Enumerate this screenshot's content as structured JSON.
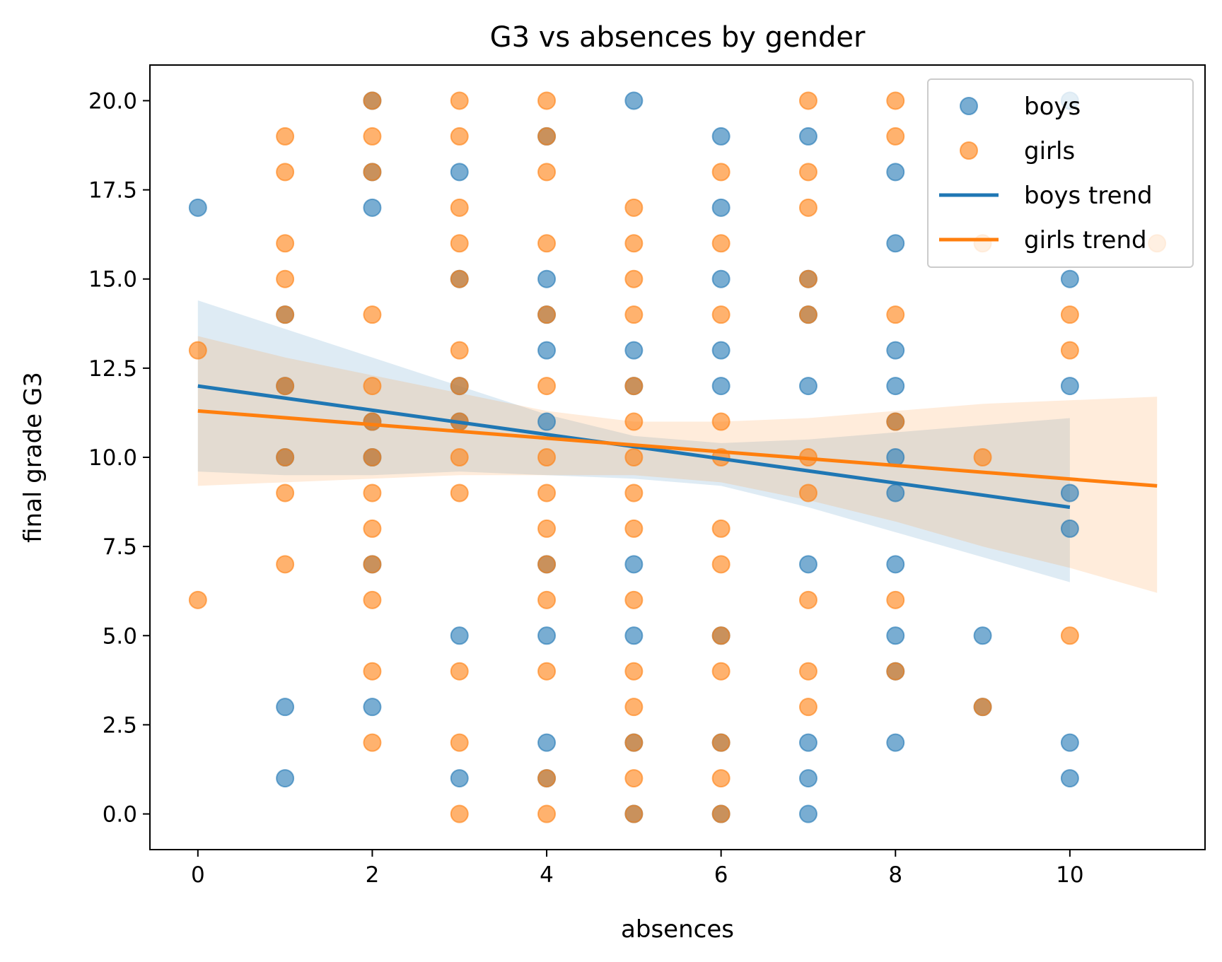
{
  "chart_data": {
    "type": "scatter",
    "title": "G3 vs absences by gender",
    "xlabel": "absences",
    "ylabel": "final grade G3",
    "xlim": [
      -0.55,
      11.55
    ],
    "ylim": [
      -1.0,
      21.0
    ],
    "xticks": [
      {
        "value": 0,
        "label": "0"
      },
      {
        "value": 2,
        "label": "2"
      },
      {
        "value": 4,
        "label": "4"
      },
      {
        "value": 6,
        "label": "6"
      },
      {
        "value": 8,
        "label": "8"
      },
      {
        "value": 10,
        "label": "10"
      }
    ],
    "yticks": [
      {
        "value": 0,
        "label": "0.0"
      },
      {
        "value": 2.5,
        "label": "2.5"
      },
      {
        "value": 5,
        "label": "5.0"
      },
      {
        "value": 7.5,
        "label": "7.5"
      },
      {
        "value": 10,
        "label": "10.0"
      },
      {
        "value": 12.5,
        "label": "12.5"
      },
      {
        "value": 15,
        "label": "15.0"
      },
      {
        "value": 17.5,
        "label": "17.5"
      },
      {
        "value": 20,
        "label": "20.0"
      }
    ],
    "grid": false,
    "legend_position": "top-right",
    "series": [
      {
        "name": "boys",
        "kind": "scatter",
        "color": "#1f77b4",
        "points": [
          [
            0,
            17
          ],
          [
            1,
            12
          ],
          [
            1,
            10
          ],
          [
            1,
            14
          ],
          [
            1,
            3
          ],
          [
            1,
            1
          ],
          [
            2,
            20
          ],
          [
            2,
            18
          ],
          [
            2,
            17
          ],
          [
            2,
            11
          ],
          [
            2,
            10
          ],
          [
            2,
            7
          ],
          [
            2,
            3
          ],
          [
            3,
            18
          ],
          [
            3,
            15
          ],
          [
            3,
            12
          ],
          [
            3,
            11
          ],
          [
            3,
            5
          ],
          [
            3,
            1
          ],
          [
            4,
            19
          ],
          [
            4,
            15
          ],
          [
            4,
            14
          ],
          [
            4,
            13
          ],
          [
            4,
            11
          ],
          [
            4,
            7
          ],
          [
            4,
            5
          ],
          [
            4,
            2
          ],
          [
            4,
            1
          ],
          [
            5,
            20
          ],
          [
            5,
            13
          ],
          [
            5,
            12
          ],
          [
            5,
            7
          ],
          [
            5,
            5
          ],
          [
            5,
            2
          ],
          [
            5,
            0
          ],
          [
            6,
            19
          ],
          [
            6,
            17
          ],
          [
            6,
            15
          ],
          [
            6,
            13
          ],
          [
            6,
            12
          ],
          [
            6,
            5
          ],
          [
            6,
            2
          ],
          [
            6,
            0
          ],
          [
            7,
            19
          ],
          [
            7,
            15
          ],
          [
            7,
            14
          ],
          [
            7,
            12
          ],
          [
            7,
            7
          ],
          [
            7,
            2
          ],
          [
            7,
            1
          ],
          [
            7,
            0
          ],
          [
            8,
            18
          ],
          [
            8,
            16
          ],
          [
            8,
            13
          ],
          [
            8,
            12
          ],
          [
            8,
            11
          ],
          [
            8,
            10
          ],
          [
            8,
            9
          ],
          [
            8,
            7
          ],
          [
            8,
            5
          ],
          [
            8,
            4
          ],
          [
            8,
            2
          ],
          [
            9,
            5
          ],
          [
            9,
            3
          ],
          [
            10,
            20
          ],
          [
            10,
            15
          ],
          [
            10,
            12
          ],
          [
            10,
            9
          ],
          [
            10,
            8
          ],
          [
            10,
            2
          ],
          [
            10,
            1
          ]
        ]
      },
      {
        "name": "girls",
        "kind": "scatter",
        "color": "#ff7f0e",
        "points": [
          [
            0,
            13
          ],
          [
            0,
            6
          ],
          [
            1,
            19
          ],
          [
            1,
            18
          ],
          [
            1,
            16
          ],
          [
            1,
            15
          ],
          [
            1,
            14
          ],
          [
            1,
            12
          ],
          [
            1,
            10
          ],
          [
            1,
            9
          ],
          [
            1,
            7
          ],
          [
            2,
            20
          ],
          [
            2,
            19
          ],
          [
            2,
            18
          ],
          [
            2,
            14
          ],
          [
            2,
            12
          ],
          [
            2,
            11
          ],
          [
            2,
            10
          ],
          [
            2,
            9
          ],
          [
            2,
            8
          ],
          [
            2,
            7
          ],
          [
            2,
            6
          ],
          [
            2,
            4
          ],
          [
            2,
            2
          ],
          [
            3,
            20
          ],
          [
            3,
            19
          ],
          [
            3,
            17
          ],
          [
            3,
            16
          ],
          [
            3,
            15
          ],
          [
            3,
            13
          ],
          [
            3,
            12
          ],
          [
            3,
            11
          ],
          [
            3,
            10
          ],
          [
            3,
            9
          ],
          [
            3,
            4
          ],
          [
            3,
            2
          ],
          [
            3,
            0
          ],
          [
            4,
            20
          ],
          [
            4,
            19
          ],
          [
            4,
            18
          ],
          [
            4,
            16
          ],
          [
            4,
            14
          ],
          [
            4,
            12
          ],
          [
            4,
            10
          ],
          [
            4,
            9
          ],
          [
            4,
            8
          ],
          [
            4,
            7
          ],
          [
            4,
            6
          ],
          [
            4,
            4
          ],
          [
            4,
            1
          ],
          [
            4,
            0
          ],
          [
            5,
            17
          ],
          [
            5,
            16
          ],
          [
            5,
            15
          ],
          [
            5,
            14
          ],
          [
            5,
            12
          ],
          [
            5,
            11
          ],
          [
            5,
            10
          ],
          [
            5,
            9
          ],
          [
            5,
            8
          ],
          [
            5,
            6
          ],
          [
            5,
            4
          ],
          [
            5,
            3
          ],
          [
            5,
            2
          ],
          [
            5,
            1
          ],
          [
            5,
            0
          ],
          [
            6,
            18
          ],
          [
            6,
            16
          ],
          [
            6,
            14
          ],
          [
            6,
            11
          ],
          [
            6,
            10
          ],
          [
            6,
            8
          ],
          [
            6,
            7
          ],
          [
            6,
            5
          ],
          [
            6,
            4
          ],
          [
            6,
            2
          ],
          [
            6,
            1
          ],
          [
            6,
            0
          ],
          [
            7,
            20
          ],
          [
            7,
            18
          ],
          [
            7,
            17
          ],
          [
            7,
            15
          ],
          [
            7,
            14
          ],
          [
            7,
            10
          ],
          [
            7,
            9
          ],
          [
            7,
            6
          ],
          [
            7,
            4
          ],
          [
            7,
            3
          ],
          [
            8,
            20
          ],
          [
            8,
            19
          ],
          [
            8,
            14
          ],
          [
            8,
            11
          ],
          [
            8,
            6
          ],
          [
            8,
            4
          ],
          [
            9,
            16
          ],
          [
            9,
            10
          ],
          [
            9,
            3
          ],
          [
            10,
            14
          ],
          [
            10,
            13
          ],
          [
            10,
            5
          ],
          [
            11,
            16
          ]
        ]
      },
      {
        "name": "boys trend",
        "kind": "line",
        "color": "#1f77b4",
        "line": [
          [
            0,
            12.0
          ],
          [
            10,
            8.6
          ]
        ],
        "band_upper": [
          [
            0,
            14.4
          ],
          [
            1,
            13.6
          ],
          [
            2,
            12.8
          ],
          [
            3,
            12.0
          ],
          [
            4,
            11.2
          ],
          [
            5,
            10.6
          ],
          [
            6,
            10.4
          ],
          [
            7,
            10.5
          ],
          [
            8,
            10.7
          ],
          [
            9,
            10.9
          ],
          [
            10,
            11.1
          ]
        ],
        "band_lower": [
          [
            0,
            9.6
          ],
          [
            1,
            9.5
          ],
          [
            2,
            9.5
          ],
          [
            3,
            9.6
          ],
          [
            4,
            9.5
          ],
          [
            5,
            9.4
          ],
          [
            6,
            9.2
          ],
          [
            7,
            8.6
          ],
          [
            8,
            7.9
          ],
          [
            9,
            7.2
          ],
          [
            10,
            6.5
          ]
        ]
      },
      {
        "name": "girls trend",
        "kind": "line",
        "color": "#ff7f0e",
        "line": [
          [
            0,
            11.3
          ],
          [
            11,
            9.2
          ]
        ],
        "band_upper": [
          [
            0,
            13.4
          ],
          [
            1,
            12.8
          ],
          [
            2,
            12.3
          ],
          [
            3,
            11.8
          ],
          [
            4,
            11.3
          ],
          [
            5,
            11.0
          ],
          [
            6,
            11.0
          ],
          [
            7,
            11.1
          ],
          [
            8,
            11.3
          ],
          [
            9,
            11.5
          ],
          [
            10,
            11.6
          ],
          [
            11,
            11.7
          ]
        ],
        "band_lower": [
          [
            0,
            9.2
          ],
          [
            1,
            9.3
          ],
          [
            2,
            9.4
          ],
          [
            3,
            9.5
          ],
          [
            4,
            9.5
          ],
          [
            5,
            9.5
          ],
          [
            6,
            9.3
          ],
          [
            7,
            8.8
          ],
          [
            8,
            8.2
          ],
          [
            9,
            7.5
          ],
          [
            10,
            6.9
          ],
          [
            11,
            6.2
          ]
        ]
      }
    ]
  }
}
